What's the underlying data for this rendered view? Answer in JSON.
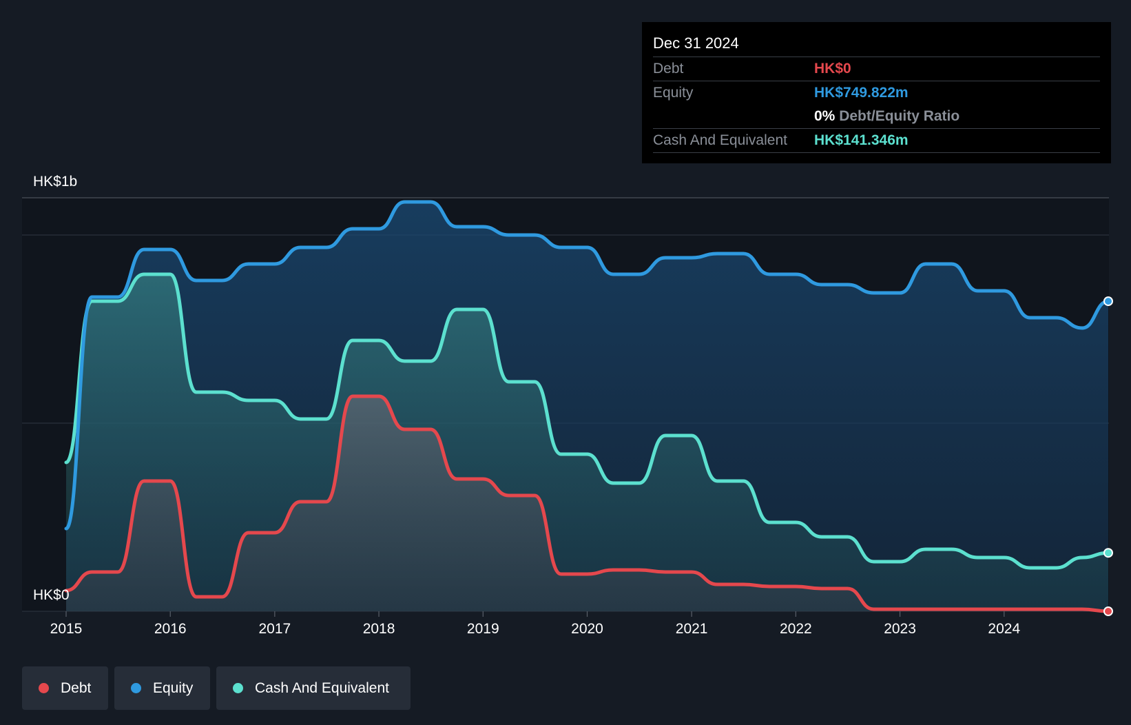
{
  "chart_data": {
    "type": "area",
    "x": [
      "2015-01-01",
      "2015-04-01",
      "2015-07-01",
      "2015-10-01",
      "2016-01-01",
      "2016-04-01",
      "2016-07-01",
      "2016-10-01",
      "2017-01-01",
      "2017-04-01",
      "2017-07-01",
      "2017-10-01",
      "2018-01-01",
      "2018-04-01",
      "2018-07-01",
      "2018-10-01",
      "2019-01-01",
      "2019-04-01",
      "2019-07-01",
      "2019-10-01",
      "2020-01-01",
      "2020-04-01",
      "2020-07-01",
      "2020-10-01",
      "2021-01-01",
      "2021-04-01",
      "2021-07-01",
      "2021-10-01",
      "2022-01-01",
      "2022-04-01",
      "2022-07-01",
      "2022-10-01",
      "2023-01-01",
      "2023-04-01",
      "2023-07-01",
      "2023-10-01",
      "2024-01-01",
      "2024-04-01",
      "2024-07-01",
      "2024-10-01",
      "2024-12-31"
    ],
    "series": [
      {
        "name": "Debt",
        "color": "#e5484d",
        "values": [
          50,
          95,
          95,
          315,
          315,
          35,
          35,
          190,
          190,
          265,
          265,
          520,
          520,
          440,
          440,
          320,
          320,
          280,
          280,
          90,
          90,
          100,
          100,
          95,
          95,
          65,
          65,
          60,
          60,
          55,
          55,
          5,
          5,
          5,
          5,
          5,
          5,
          5,
          5,
          5,
          0
        ]
      },
      {
        "name": "Equity",
        "color": "#2f9ae0",
        "values": [
          200,
          760,
          760,
          875,
          875,
          800,
          800,
          840,
          840,
          880,
          880,
          925,
          925,
          990,
          990,
          930,
          930,
          910,
          910,
          880,
          880,
          815,
          815,
          855,
          855,
          865,
          865,
          815,
          815,
          790,
          790,
          770,
          770,
          840,
          840,
          775,
          775,
          710,
          710,
          685,
          749.822
        ]
      },
      {
        "name": "Cash And Equivalent",
        "color": "#5ce0cf",
        "values": [
          360,
          750,
          750,
          815,
          815,
          530,
          530,
          510,
          510,
          465,
          465,
          655,
          655,
          605,
          605,
          730,
          730,
          555,
          555,
          380,
          380,
          310,
          310,
          425,
          425,
          315,
          315,
          215,
          215,
          180,
          180,
          120,
          120,
          150,
          150,
          130,
          130,
          105,
          105,
          130,
          141.346
        ]
      }
    ],
    "y_labels": [
      "HK$0",
      "HK$1b"
    ],
    "x_ticks": [
      "2015",
      "2016",
      "2017",
      "2018",
      "2019",
      "2020",
      "2021",
      "2022",
      "2023",
      "2024"
    ],
    "ylim": [
      0,
      1000
    ],
    "grid": true,
    "legend": "bottom-left"
  },
  "tooltip": {
    "date": "Dec 31 2024",
    "debt_label": "Debt",
    "debt_value": "HK$0",
    "equity_label": "Equity",
    "equity_value": "HK$749.822m",
    "ratio_pct": "0%",
    "ratio_label": "Debt/Equity Ratio",
    "cash_label": "Cash And Equivalent",
    "cash_value": "HK$141.346m"
  },
  "legend": {
    "items": [
      {
        "label": "Debt",
        "color": "#e5484d"
      },
      {
        "label": "Equity",
        "color": "#2f9ae0"
      },
      {
        "label": "Cash And Equivalent",
        "color": "#5ce0cf"
      }
    ]
  }
}
